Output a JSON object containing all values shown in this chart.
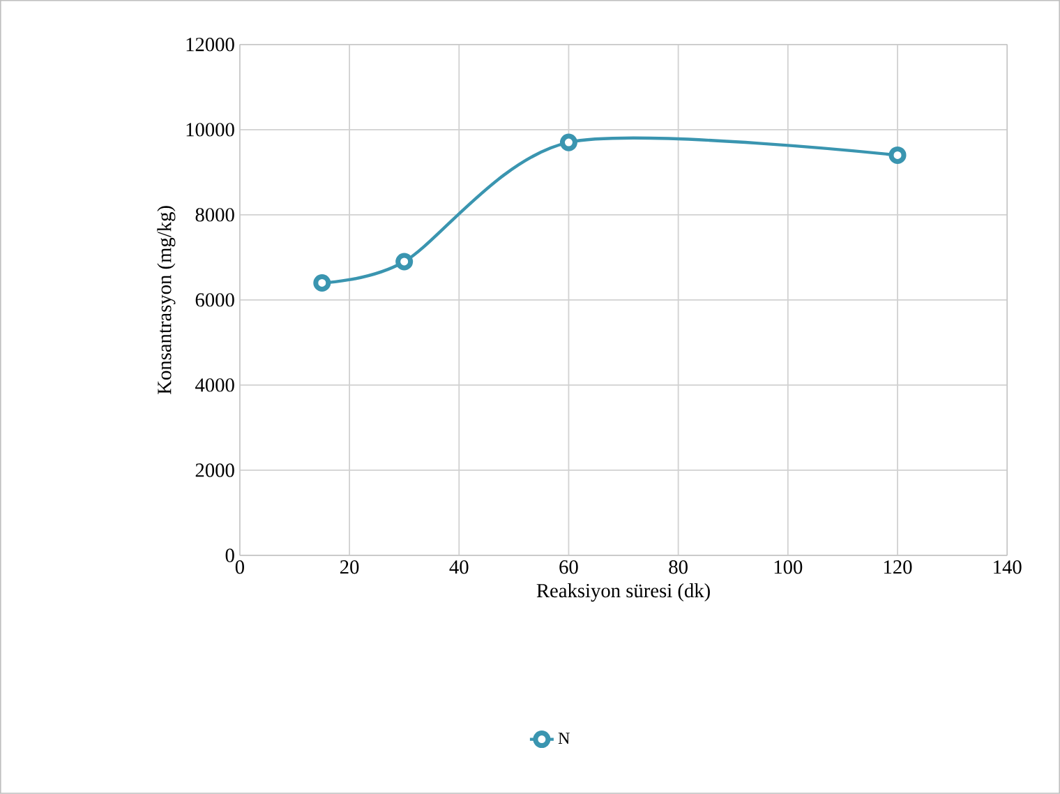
{
  "chart_data": {
    "type": "line",
    "xlabel": "Reaksiyon süresi (dk)",
    "ylabel": "Konsantrasyon (mg/kg)",
    "x": [
      15,
      30,
      60,
      120
    ],
    "series": [
      {
        "name": "N",
        "color": "#3a95b0",
        "values": [
          6400,
          6900,
          9700,
          9400
        ]
      }
    ],
    "xlim": [
      0,
      140
    ],
    "xticks": [
      0,
      20,
      40,
      60,
      80,
      100,
      120,
      140
    ],
    "ylim": [
      0,
      12000
    ],
    "yticks": [
      0,
      2000,
      4000,
      6000,
      8000,
      10000,
      12000
    ],
    "grid": true,
    "legend": "bottom",
    "marker": "circle",
    "line_style": "solid"
  }
}
